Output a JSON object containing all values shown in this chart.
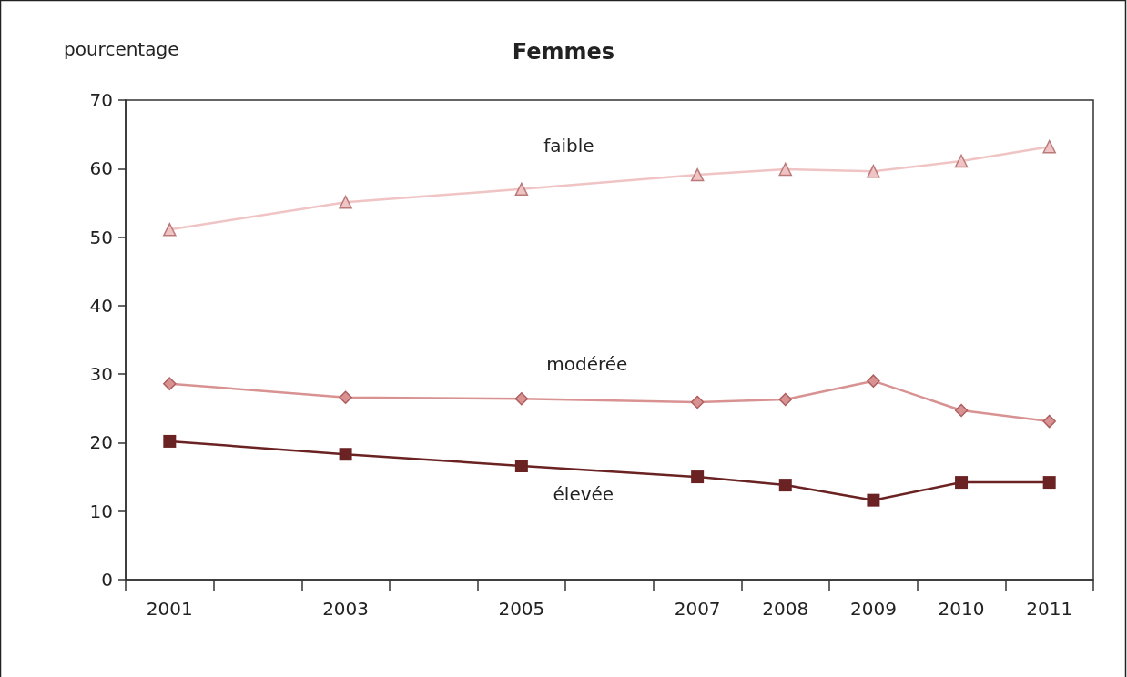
{
  "chart_data": {
    "type": "line",
    "title": "Femmes",
    "ylabel": "pourcentage",
    "categories": [
      "2001",
      null,
      "2003",
      null,
      "2005",
      null,
      "2007",
      "2008",
      "2009",
      "2010",
      "2011"
    ],
    "series": [
      {
        "name": "faible",
        "color": "#f0c4c4",
        "marker": "triangle",
        "values": [
          51.1,
          null,
          55.1,
          null,
          57.0,
          null,
          59.1,
          59.9,
          59.6,
          61.1,
          63.2
        ]
      },
      {
        "name": "modérée",
        "color": "#d99292",
        "marker": "diamond",
        "values": [
          28.6,
          null,
          26.6,
          null,
          26.4,
          null,
          25.9,
          26.3,
          29.0,
          24.7,
          23.1
        ]
      },
      {
        "name": "élevée",
        "color": "#6b2222",
        "marker": "square",
        "values": [
          20.2,
          null,
          18.3,
          null,
          16.6,
          null,
          15.0,
          13.8,
          11.6,
          14.2,
          14.2
        ]
      }
    ],
    "ylim": [
      0,
      70
    ],
    "yticks": [
      0,
      10,
      20,
      30,
      40,
      50,
      60,
      70
    ],
    "grid": false,
    "legend": false
  }
}
